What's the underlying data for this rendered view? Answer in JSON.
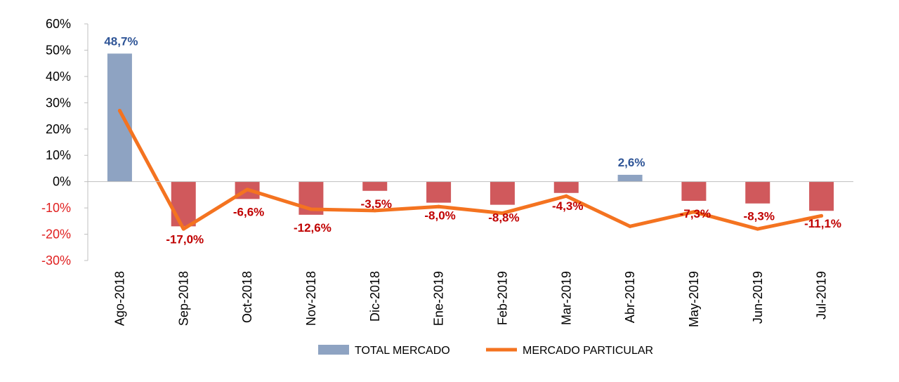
{
  "chart_data": {
    "type": "bar",
    "categories": [
      "Ago-2018",
      "Sep-2018",
      "Oct-2018",
      "Nov-2018",
      "Dic-2018",
      "Ene-2019",
      "Feb-2019",
      "Mar-2019",
      "Abr-2019",
      "May-2019",
      "Jun-2019",
      "Jul-2019"
    ],
    "series": [
      {
        "name": "TOTAL MERCADO",
        "type": "bar",
        "values": [
          48.7,
          -17.0,
          -6.6,
          -12.6,
          -3.5,
          -8.0,
          -8.8,
          -4.3,
          2.6,
          -7.3,
          -8.3,
          -11.1
        ],
        "labels": [
          "48,7%",
          "-17,0%",
          "-6,6%",
          "-12,6%",
          "-3,5%",
          "-8,0%",
          "-8,8%",
          "-4,3%",
          "2,6%",
          "-7,3%",
          "-8,3%",
          "-11,1%"
        ]
      },
      {
        "name": "MERCADO PARTICULAR",
        "type": "line",
        "values": [
          27,
          -18,
          -3,
          -10.5,
          -11,
          -9.5,
          -12,
          -5.5,
          -17,
          -11.5,
          -18,
          -13
        ]
      }
    ],
    "ylim": [
      -30,
      60
    ],
    "yticks": [
      {
        "v": 60,
        "label": "60%"
      },
      {
        "v": 50,
        "label": "50%"
      },
      {
        "v": 40,
        "label": "40%"
      },
      {
        "v": 30,
        "label": "30%"
      },
      {
        "v": 20,
        "label": "20%"
      },
      {
        "v": 10,
        "label": "10%"
      },
      {
        "v": 0,
        "label": "0%"
      },
      {
        "v": -10,
        "label": "-10%"
      },
      {
        "v": -20,
        "label": "-20%"
      },
      {
        "v": -30,
        "label": "-30%"
      }
    ],
    "grid": false,
    "legend_position": "bottom",
    "colors": {
      "bar_positive": "#8EA3C2",
      "bar_negative": "#D0595C",
      "line": "#F47320",
      "label_positive": "#2F5597",
      "label_negative": "#C00000",
      "tick_positive": "#000000",
      "tick_negative": "#E02020"
    }
  }
}
